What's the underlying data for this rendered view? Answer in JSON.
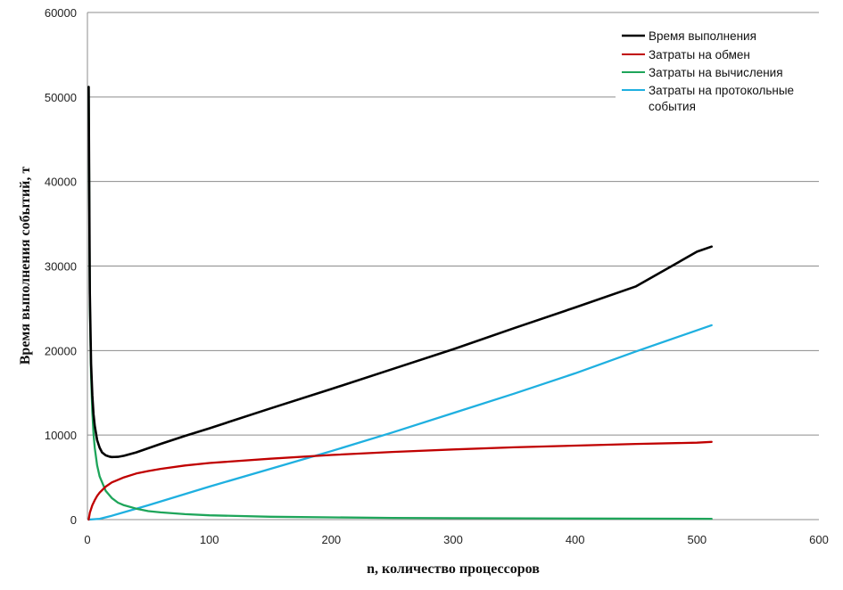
{
  "chart_data": {
    "type": "line",
    "xlabel": "n, количество процессоров",
    "ylabel": "Время  выполнения  событий, т",
    "xlim": [
      0,
      600
    ],
    "ylim": [
      0,
      60000
    ],
    "x_ticks": [
      0,
      100,
      200,
      300,
      400,
      500,
      600
    ],
    "y_ticks": [
      0,
      10000,
      20000,
      30000,
      40000,
      50000,
      60000
    ],
    "grid": "horizontal",
    "legend_position": "top-right",
    "series": [
      {
        "name": "Время выполнения",
        "color": "#000000",
        "points": [
          [
            1,
            51200
          ],
          [
            2,
            26800
          ],
          [
            3,
            18400
          ],
          [
            4,
            14700
          ],
          [
            5,
            12500
          ],
          [
            6,
            11100
          ],
          [
            8,
            9400
          ],
          [
            10,
            8500
          ],
          [
            12,
            7950
          ],
          [
            15,
            7600
          ],
          [
            18,
            7450
          ],
          [
            20,
            7400
          ],
          [
            25,
            7420
          ],
          [
            30,
            7550
          ],
          [
            40,
            7950
          ],
          [
            50,
            8450
          ],
          [
            60,
            8950
          ],
          [
            80,
            9900
          ],
          [
            100,
            10800
          ],
          [
            150,
            13150
          ],
          [
            200,
            15450
          ],
          [
            250,
            17800
          ],
          [
            300,
            20150
          ],
          [
            350,
            22650
          ],
          [
            400,
            25100
          ],
          [
            450,
            27600
          ],
          [
            500,
            31700
          ],
          [
            512,
            32300
          ]
        ]
      },
      {
        "name": "Затраты на обмен",
        "color": "#c00000",
        "points": [
          [
            1,
            0
          ],
          [
            2,
            800
          ],
          [
            4,
            1700
          ],
          [
            6,
            2300
          ],
          [
            8,
            2800
          ],
          [
            10,
            3200
          ],
          [
            15,
            3900
          ],
          [
            20,
            4400
          ],
          [
            30,
            5000
          ],
          [
            40,
            5450
          ],
          [
            50,
            5750
          ],
          [
            60,
            6000
          ],
          [
            80,
            6400
          ],
          [
            100,
            6700
          ],
          [
            150,
            7200
          ],
          [
            200,
            7650
          ],
          [
            250,
            8000
          ],
          [
            300,
            8300
          ],
          [
            350,
            8550
          ],
          [
            400,
            8750
          ],
          [
            450,
            8950
          ],
          [
            500,
            9100
          ],
          [
            512,
            9200
          ]
        ]
      },
      {
        "name": "Затраты на вычисления",
        "color": "#1ea55a",
        "points": [
          [
            1,
            51200
          ],
          [
            2,
            25600
          ],
          [
            3,
            17000
          ],
          [
            4,
            12800
          ],
          [
            5,
            10200
          ],
          [
            6,
            8500
          ],
          [
            8,
            6400
          ],
          [
            10,
            5100
          ],
          [
            15,
            3400
          ],
          [
            20,
            2550
          ],
          [
            25,
            2000
          ],
          [
            30,
            1700
          ],
          [
            40,
            1300
          ],
          [
            50,
            1000
          ],
          [
            60,
            850
          ],
          [
            80,
            640
          ],
          [
            100,
            510
          ],
          [
            150,
            340
          ],
          [
            200,
            260
          ],
          [
            250,
            200
          ],
          [
            300,
            170
          ],
          [
            400,
            130
          ],
          [
            512,
            100
          ]
        ]
      },
      {
        "name": "Затраты на протокольные события",
        "color": "#1fb0e0",
        "points": [
          [
            1,
            0
          ],
          [
            10,
            100
          ],
          [
            20,
            450
          ],
          [
            50,
            1700
          ],
          [
            100,
            3900
          ],
          [
            150,
            6000
          ],
          [
            200,
            8100
          ],
          [
            250,
            10300
          ],
          [
            300,
            12600
          ],
          [
            350,
            14900
          ],
          [
            400,
            17300
          ],
          [
            450,
            19900
          ],
          [
            512,
            23000
          ]
        ]
      }
    ]
  }
}
